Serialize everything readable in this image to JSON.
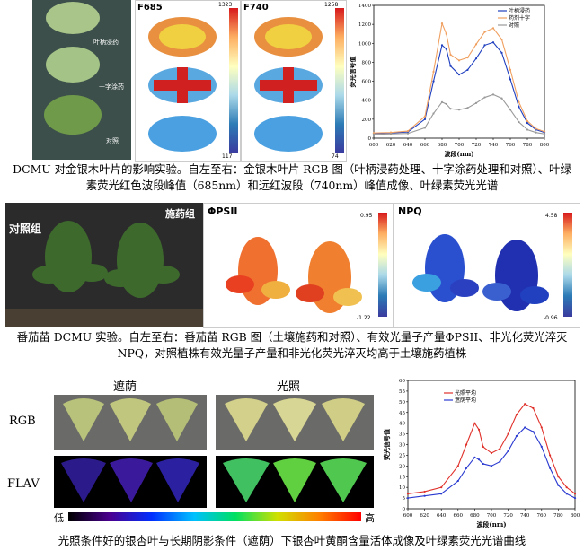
{
  "section1": {
    "rgb_labels": [
      "叶柄浸药",
      "十字涂药",
      "对照"
    ],
    "f685_label": "F685",
    "f740_label": "F740",
    "f685_max": "1323",
    "f685_min": "117",
    "f740_max": "1258",
    "f740_min": "74",
    "caption_line1": "DCMU 对金银木叶片的影响实验。自左至右：金银木叶片 RGB 图（叶柄浸药处理、十字涂药处理和对照）、叶绿",
    "caption_line2": "素荧光红色波段峰值（685nm）和远红波段（740nm）峰值成像、叶绿素荧光光谱"
  },
  "section2": {
    "control_label": "对照组",
    "treated_label": "施药组",
    "phipsii_label": "ΦPSII",
    "npq_label": "NPQ",
    "phipsii_max": "0.95",
    "phipsii_min": "-1.22",
    "npq_max": "4.58",
    "npq_min": "-0.96",
    "caption_line1": "番茄苗 DCMU 实验。自左至右：番茄苗 RGB 图（土壤施药和对照）、有效光量子产量ΦPSII、非光化荧光淬灭",
    "caption_line2": "NPQ，对照植株有效光量子产量和非光化荧光淬灭均高于土壤施药植株"
  },
  "section3": {
    "shade_label": "遮荫",
    "light_label": "光照",
    "rgb_row_label": "RGB",
    "flav_row_label": "FLAV",
    "scale_low": "低",
    "scale_high": "高",
    "caption": "光照条件好的银杏叶与长期阴影条件（遮荫）下银杏叶黄酮含量活体成像及叶绿素荧光光谱曲线"
  },
  "chart_data": [
    {
      "type": "line",
      "xlabel": "波段(nm)",
      "ylabel": "荧光信号值",
      "xlim": [
        600,
        800
      ],
      "ylim": [
        0,
        1400
      ],
      "xticks": [
        600,
        620,
        640,
        660,
        680,
        700,
        720,
        740,
        760,
        780,
        800
      ],
      "yticks": [
        0,
        200,
        400,
        600,
        800,
        1000,
        1200,
        1400
      ],
      "legend_position": "top-right",
      "grid": false,
      "x": [
        600,
        620,
        640,
        660,
        670,
        680,
        685,
        690,
        700,
        710,
        720,
        730,
        740,
        750,
        760,
        770,
        780,
        790,
        800
      ],
      "series": [
        {
          "name": "叶柄浸药",
          "color": "#1f3fbf",
          "values": [
            50,
            55,
            65,
            200,
            600,
            980,
            940,
            760,
            670,
            720,
            840,
            980,
            1010,
            900,
            620,
            330,
            160,
            90,
            60
          ]
        },
        {
          "name": "药剂十字",
          "color": "#f0a060",
          "values": [
            55,
            60,
            75,
            230,
            700,
            1210,
            1100,
            880,
            820,
            850,
            990,
            1120,
            1160,
            1040,
            720,
            380,
            180,
            100,
            70
          ]
        },
        {
          "name": "对照",
          "color": "#999999",
          "values": [
            40,
            45,
            50,
            110,
            260,
            380,
            360,
            310,
            300,
            320,
            370,
            430,
            460,
            420,
            300,
            170,
            90,
            60,
            45
          ]
        }
      ]
    },
    {
      "type": "line",
      "xlabel": "波段(nm)",
      "ylabel": "荧光信号值",
      "xlim": [
        600,
        800
      ],
      "ylim": [
        0,
        60
      ],
      "xticks": [
        600,
        620,
        640,
        660,
        680,
        700,
        720,
        740,
        760,
        780,
        800
      ],
      "yticks": [
        0,
        5,
        10,
        15,
        20,
        25,
        30,
        35,
        40,
        45,
        50,
        55,
        60
      ],
      "legend_position": "top-left",
      "grid": false,
      "x": [
        600,
        620,
        640,
        660,
        670,
        680,
        685,
        690,
        700,
        710,
        720,
        730,
        740,
        750,
        760,
        770,
        780,
        790,
        800
      ],
      "series": [
        {
          "name": "光照平均",
          "color": "#e0302a",
          "values": [
            7,
            8,
            10,
            20,
            30,
            40,
            37,
            29,
            26,
            28,
            35,
            44,
            49,
            47,
            38,
            25,
            15,
            10,
            7
          ]
        },
        {
          "name": "遮荫平均",
          "color": "#2a3ad0",
          "values": [
            5,
            6,
            7,
            13,
            19,
            24,
            23,
            21,
            20,
            22,
            27,
            34,
            38,
            36,
            29,
            19,
            11,
            7,
            5
          ]
        }
      ]
    }
  ]
}
